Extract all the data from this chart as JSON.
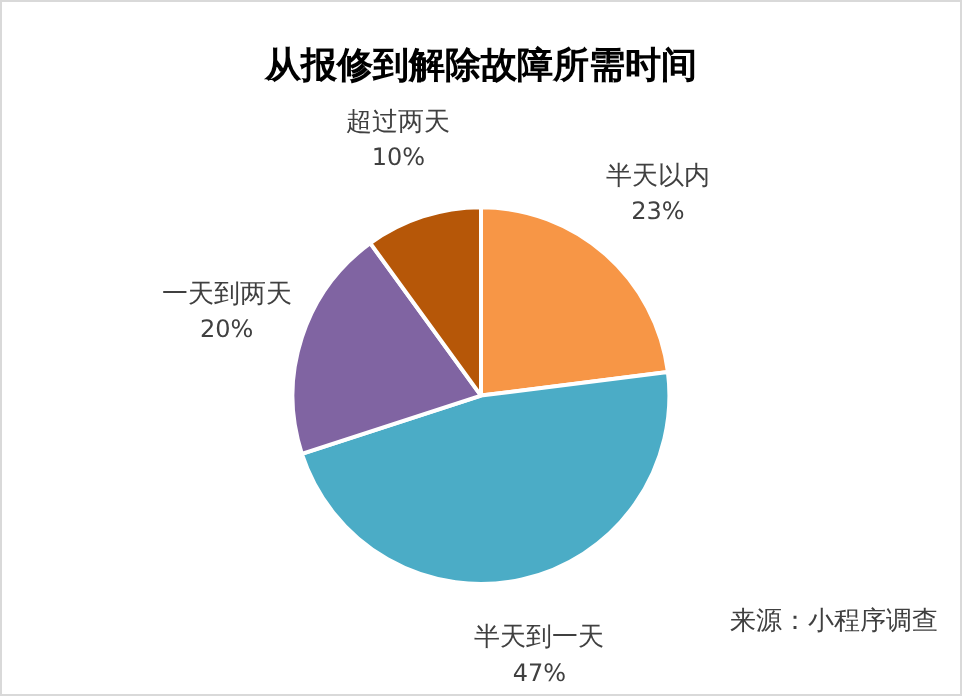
{
  "chart_data": {
    "type": "pie",
    "title": "从报修到解除故障所需时间",
    "categories": [
      "半天以内",
      "半天到一天",
      "一天到两天",
      "超过两天"
    ],
    "values": [
      23,
      47,
      20,
      10
    ],
    "value_labels": [
      "23%",
      "47%",
      "20%",
      "10%"
    ],
    "colors": [
      "#f79646",
      "#4bacc6",
      "#8064a2",
      "#b65708"
    ],
    "annotations": [
      "来源：小程序调查"
    ]
  }
}
